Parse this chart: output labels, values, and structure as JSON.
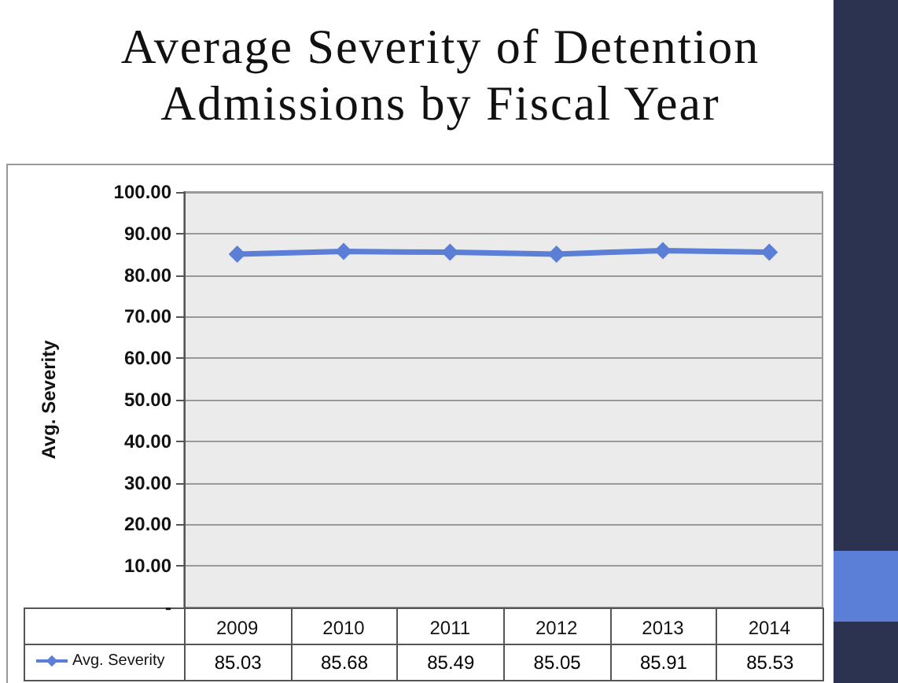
{
  "chart_data": {
    "type": "line",
    "title": "Average Severity of Detention Admissions by Fiscal Year",
    "ylabel": "Avg. Severity",
    "categories": [
      "2009",
      "2010",
      "2011",
      "2012",
      "2013",
      "2014"
    ],
    "series": [
      {
        "name": "Avg. Severity",
        "color": "#5b7ed6",
        "values": [
          85.03,
          85.68,
          85.49,
          85.05,
          85.91,
          85.53
        ]
      }
    ],
    "ylim": [
      0,
      100
    ],
    "yticks": [
      {
        "value": 0,
        "label": "-"
      },
      {
        "value": 10,
        "label": "10.00"
      },
      {
        "value": 20,
        "label": "20.00"
      },
      {
        "value": 30,
        "label": "30.00"
      },
      {
        "value": 40,
        "label": "40.00"
      },
      {
        "value": 50,
        "label": "50.00"
      },
      {
        "value": 60,
        "label": "60.00"
      },
      {
        "value": 70,
        "label": "70.00"
      },
      {
        "value": 80,
        "label": "80.00"
      },
      {
        "value": 90,
        "label": "90.00"
      },
      {
        "value": 100,
        "label": "100.00"
      }
    ],
    "grid": "y",
    "legend": "bottom",
    "marker": "diamond",
    "line_style": "solid",
    "data_labels": true
  }
}
